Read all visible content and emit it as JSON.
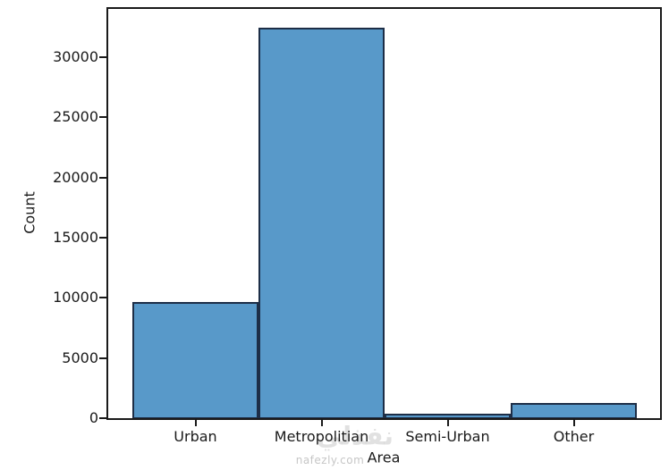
{
  "chart_data": {
    "type": "bar",
    "title": "",
    "xlabel": "Area",
    "ylabel": "Count",
    "categories": [
      "Urban",
      "Metropolitian",
      "Semi-Urban",
      "Other"
    ],
    "values": [
      9650,
      32450,
      400,
      1250
    ],
    "yticks": [
      0,
      5000,
      10000,
      15000,
      20000,
      25000,
      30000
    ],
    "ylim": [
      0,
      34000
    ],
    "grid": false,
    "legend_position": "none",
    "bar_fill_color": "#5899C9",
    "bar_edge_color": "#1d2e47",
    "axis_color": "#1a1a1a"
  },
  "watermark": {
    "arabic": "نفذلي",
    "site": "nafezly.com"
  }
}
